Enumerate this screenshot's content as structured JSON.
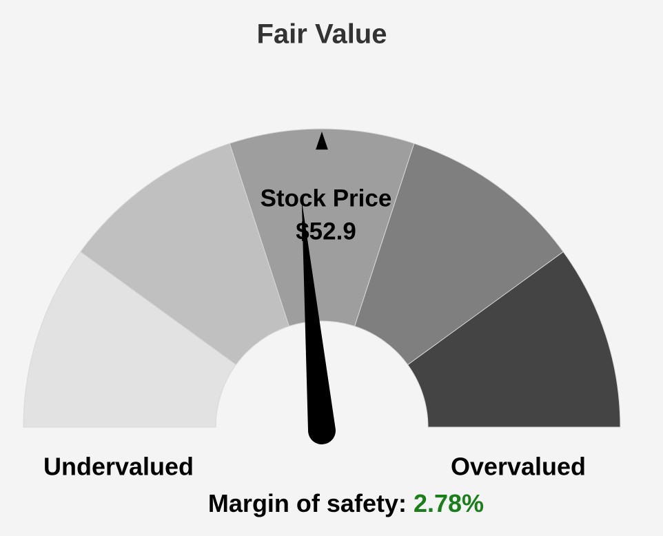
{
  "chart_data": {
    "type": "gauge",
    "title": "Fair Value",
    "lim": [
      50,
      -50
    ],
    "band_edges": [
      50,
      30,
      10,
      -10,
      -30,
      -50
    ],
    "band_colors": [
      "#e2e2e2",
      "#c0c0c0",
      "#9e9e9e",
      "#7f7f7f",
      "#444444"
    ],
    "marker": 0,
    "value": 2.78,
    "value_label": "2.78%",
    "value_color": "#1a7f1a",
    "needle_color": "#000000",
    "stock_price_label": "Stock Price",
    "stock_price": "$52.9",
    "left_label": "Undervalued",
    "right_label": "Overvalued",
    "margin_label": "Margin of safety:"
  }
}
